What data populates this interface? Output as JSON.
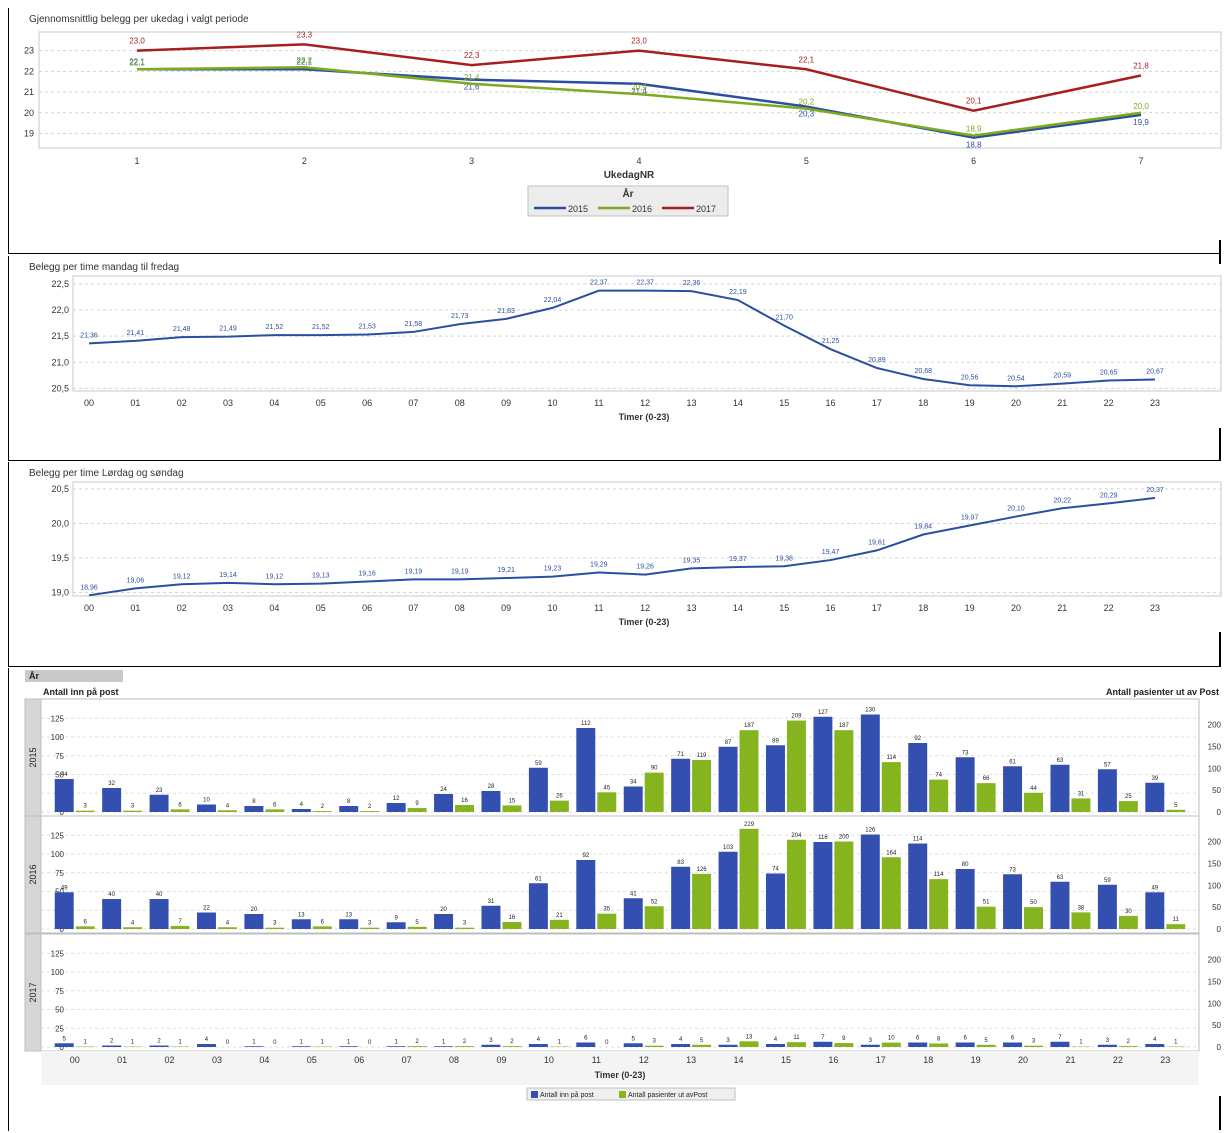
{
  "chart_data": [
    {
      "type": "line",
      "title": "Gjennomsnittlig belegg per ukedag i valgt periode",
      "xlabel": "UkedagNR",
      "ylabel": "",
      "categories": [
        "1",
        "2",
        "3",
        "4",
        "5",
        "6",
        "7"
      ],
      "ylim": [
        18.3,
        23.9
      ],
      "yticks": [
        19,
        20,
        21,
        22,
        23
      ],
      "grid": true,
      "legend_title": "År",
      "legend_position": "bottom-center",
      "series": [
        {
          "name": "2015",
          "color": "#2b4fa0",
          "values": [
            22.1,
            22.1,
            21.6,
            21.4,
            20.3,
            18.8,
            19.9
          ],
          "labels": [
            "22,1",
            "22,1",
            "21,6",
            "21,4",
            "20,3",
            "18,8",
            "19,9"
          ]
        },
        {
          "name": "2016",
          "color": "#7eab1e",
          "values": [
            22.1,
            22.2,
            21.4,
            20.9,
            20.2,
            18.9,
            20.0
          ],
          "labels": [
            "22,1",
            "22,2",
            "21,4",
            "20,9",
            "20,2",
            "18,9",
            "20,0"
          ]
        },
        {
          "name": "2017",
          "color": "#a81e1e",
          "values": [
            23.0,
            23.3,
            22.3,
            23.0,
            22.1,
            20.1,
            21.8
          ],
          "labels": [
            "23,0",
            "23,3",
            "22,3",
            "23,0",
            "22,1",
            "20,1",
            "21,8"
          ]
        }
      ]
    },
    {
      "type": "line",
      "title": "Belegg per time mandag til fredag",
      "xlabel": "Timer (0-23)",
      "ylabel": "",
      "categories": [
        "00",
        "01",
        "02",
        "03",
        "04",
        "05",
        "06",
        "07",
        "08",
        "09",
        "10",
        "11",
        "12",
        "13",
        "14",
        "15",
        "16",
        "17",
        "18",
        "19",
        "20",
        "21",
        "22",
        "23"
      ],
      "ylim": [
        20.45,
        22.65
      ],
      "yticks": [
        20.5,
        21.0,
        21.5,
        22.0,
        22.5
      ],
      "ytick_labels": [
        "20,5",
        "21,0",
        "21,5",
        "22,0",
        "22,5"
      ],
      "grid": true,
      "series": [
        {
          "name": "",
          "color": "#2b4fa0",
          "values": [
            21.36,
            21.41,
            21.48,
            21.49,
            21.52,
            21.52,
            21.53,
            21.58,
            21.73,
            21.83,
            22.04,
            22.37,
            22.37,
            22.36,
            22.19,
            21.7,
            21.25,
            20.89,
            20.68,
            20.56,
            20.54,
            20.59,
            20.65,
            20.67
          ],
          "labels": [
            "21,36",
            "21,41",
            "21,48",
            "21,49",
            "21,52",
            "21,52",
            "21,53",
            "21,58",
            "21,73",
            "21,83",
            "22,04",
            "22,37",
            "22,37",
            "22,36",
            "22,19",
            "21,70",
            "21,25",
            "20,89",
            "20,68",
            "20,56",
            "20,54",
            "20,59",
            "20,65",
            "20,67"
          ]
        }
      ]
    },
    {
      "type": "line",
      "title": "Belegg per time Lørdag og søndag",
      "xlabel": "Timer (0-23)",
      "ylabel": "",
      "categories": [
        "00",
        "01",
        "02",
        "03",
        "04",
        "05",
        "06",
        "07",
        "08",
        "09",
        "10",
        "11",
        "12",
        "13",
        "14",
        "15",
        "16",
        "17",
        "18",
        "19",
        "20",
        "21",
        "22",
        "23"
      ],
      "ylim": [
        18.95,
        20.6
      ],
      "yticks": [
        19.0,
        19.5,
        20.0,
        20.5
      ],
      "ytick_labels": [
        "19,0",
        "19,5",
        "20,0",
        "20,5"
      ],
      "grid": true,
      "series": [
        {
          "name": "",
          "color": "#2b4fa0",
          "values": [
            18.96,
            19.06,
            19.12,
            19.14,
            19.12,
            19.13,
            19.16,
            19.19,
            19.19,
            19.21,
            19.23,
            19.29,
            19.26,
            19.35,
            19.37,
            19.38,
            19.47,
            19.61,
            19.84,
            19.97,
            20.1,
            20.22,
            20.29,
            20.37
          ],
          "labels": [
            "18,96",
            "19,06",
            "19,12",
            "19,14",
            "19,12",
            "19,13",
            "19,16",
            "19,19",
            "19,19",
            "19,21",
            "19,23",
            "19,29",
            "19,26",
            "19,35",
            "19,37",
            "19,38",
            "19,47",
            "19,61",
            "19,84",
            "19,97",
            "20,10",
            "20,22",
            "20,29",
            "20,37"
          ]
        }
      ]
    },
    {
      "type": "bar",
      "title": "",
      "group_header": "År",
      "ylabel_left": "Antall inn på post",
      "ylabel_right": "Antall pasienter ut av Post",
      "xlabel": "Timer (0-23)",
      "categories": [
        "00",
        "01",
        "02",
        "03",
        "04",
        "05",
        "06",
        "07",
        "08",
        "09",
        "10",
        "11",
        "12",
        "13",
        "14",
        "15",
        "16",
        "17",
        "18",
        "19",
        "20",
        "21",
        "22",
        "23"
      ],
      "ylim_left": [
        0,
        140
      ],
      "yticks_left": [
        0,
        25,
        50,
        75,
        100,
        125
      ],
      "ylim_right": [
        0,
        240
      ],
      "yticks_right": [
        0,
        50,
        100,
        150,
        200
      ],
      "legend_position": "bottom-center",
      "series_names": [
        "Antall inn på post",
        "Antall pasienter ut avPost"
      ],
      "series_colors": [
        "#3350b0",
        "#86b41e"
      ],
      "panels": [
        {
          "label": "2015",
          "inn": [
            44,
            32,
            23,
            10,
            8,
            4,
            8,
            12,
            24,
            28,
            59,
            112,
            34,
            71,
            87,
            89,
            127,
            130,
            92,
            73,
            61,
            63,
            57,
            39
          ],
          "ut": [
            3,
            3,
            6,
            4,
            6,
            2,
            2,
            9,
            16,
            15,
            26,
            45,
            90,
            119,
            187,
            209,
            187,
            114,
            74,
            66,
            44,
            31,
            25,
            5
          ]
        },
        {
          "label": "2016",
          "inn": [
            49,
            40,
            40,
            22,
            20,
            13,
            13,
            9,
            20,
            31,
            61,
            92,
            41,
            83,
            103,
            74,
            116,
            126,
            114,
            80,
            73,
            63,
            59,
            49
          ],
          "ut": [
            6,
            4,
            7,
            4,
            3,
            6,
            3,
            5,
            3,
            16,
            21,
            35,
            52,
            126,
            229,
            204,
            200,
            164,
            114,
            51,
            50,
            38,
            30,
            11
          ]
        },
        {
          "label": "2017",
          "inn": [
            5,
            2,
            2,
            4,
            1,
            1,
            1,
            1,
            1,
            3,
            4,
            6,
            5,
            4,
            3,
            4,
            7,
            3,
            6,
            6,
            6,
            7,
            3,
            4
          ],
          "ut": [
            1,
            1,
            1,
            0,
            0,
            1,
            0,
            2,
            2,
            2,
            1,
            0,
            3,
            5,
            13,
            11,
            9,
            10,
            8,
            5,
            3,
            1,
            2,
            1
          ]
        }
      ]
    }
  ]
}
